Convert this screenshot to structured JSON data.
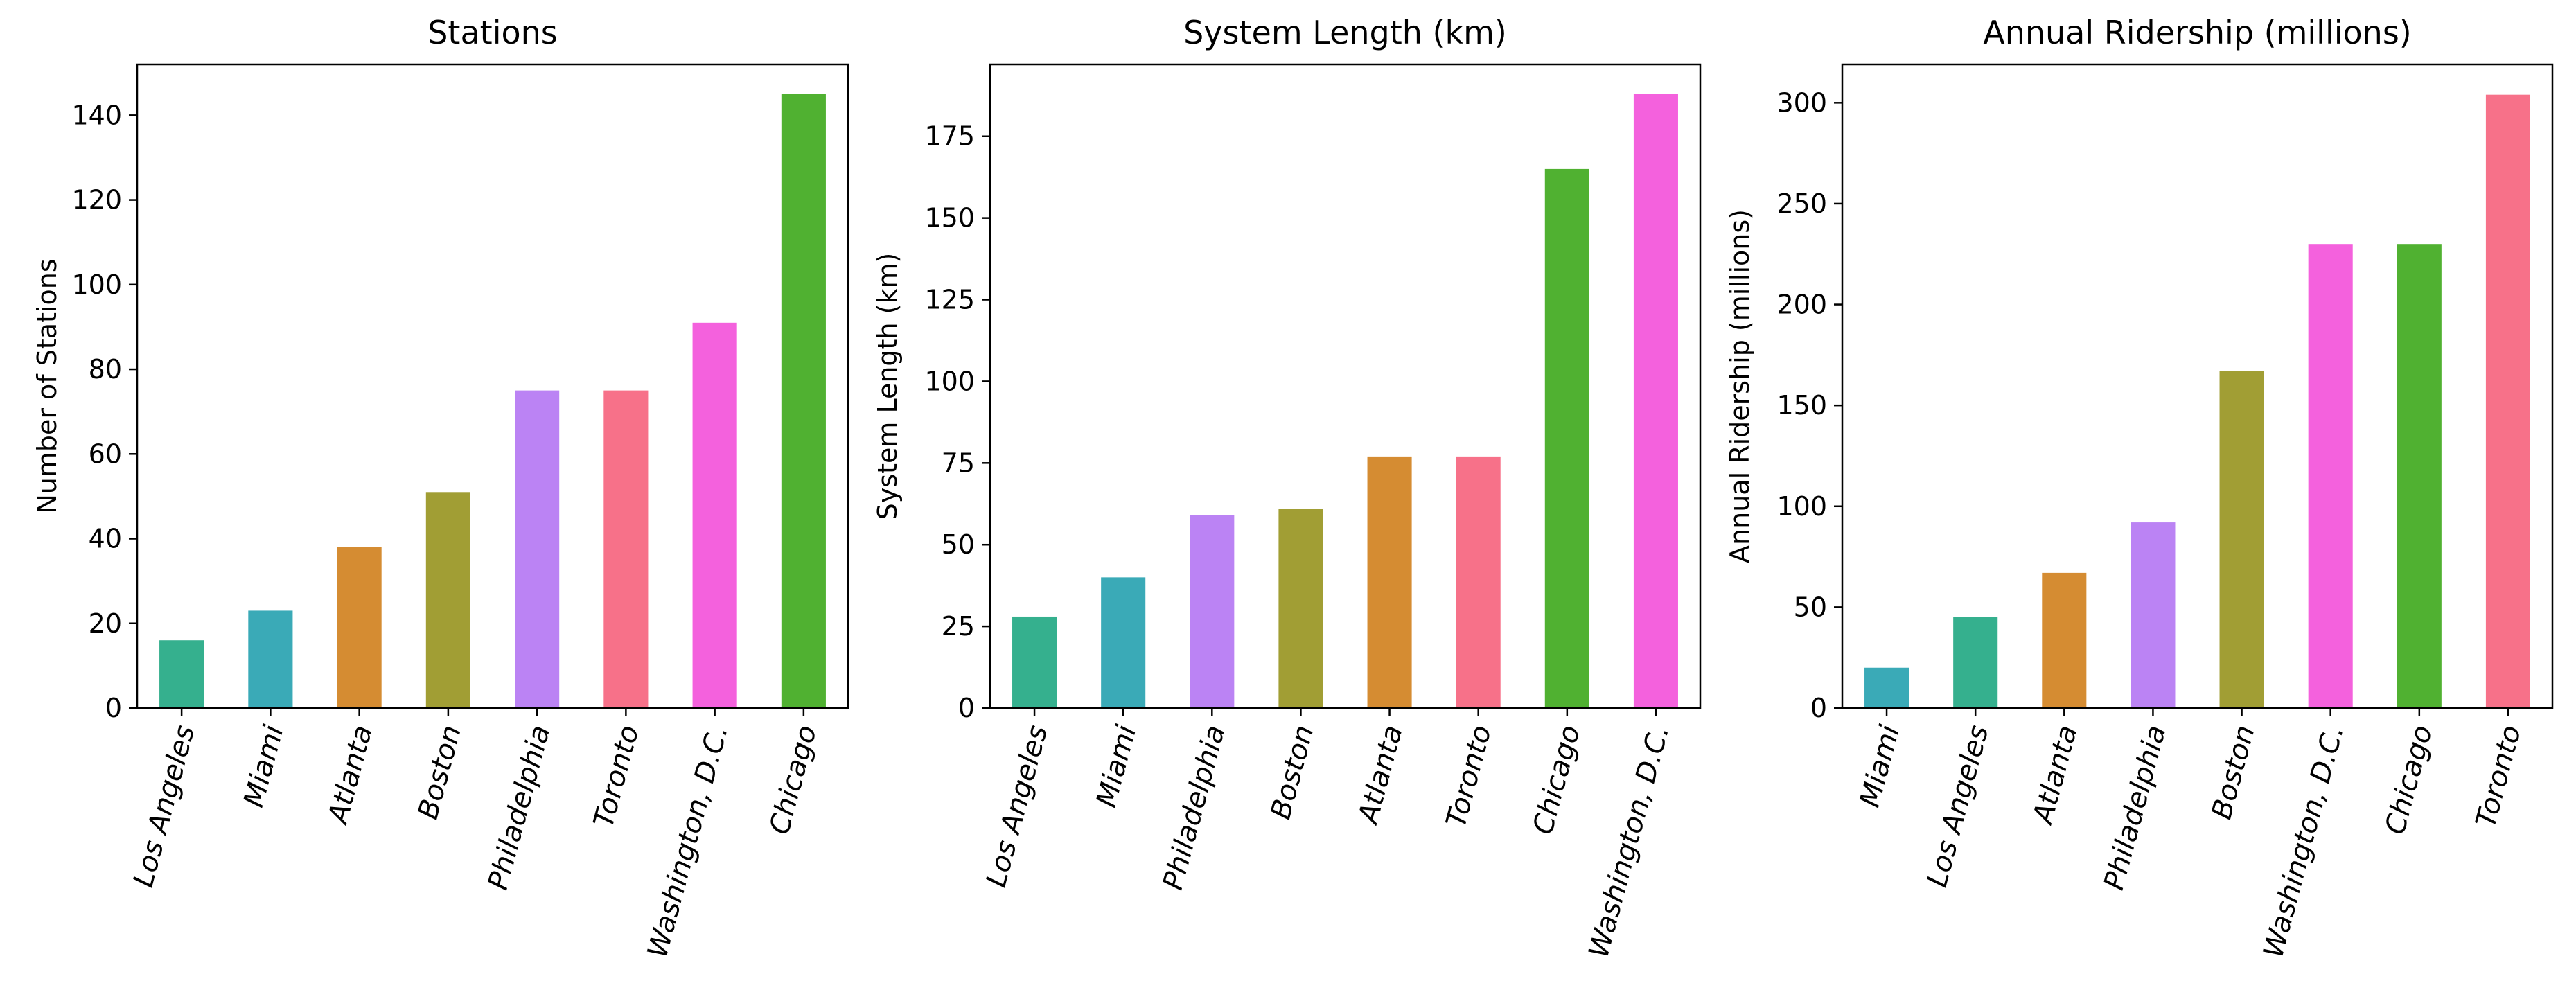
{
  "chart_data": [
    {
      "type": "bar",
      "title": "Stations",
      "xlabel": "",
      "ylabel": "Number of Stations",
      "ylim": [
        0,
        152
      ],
      "yticks": [
        0,
        20,
        40,
        60,
        80,
        100,
        120,
        140
      ],
      "grid": false,
      "categories": [
        "Los Angeles",
        "Miami",
        "Atlanta",
        "Boston",
        "Philadelphia",
        "Toronto",
        "Washington, D.C.",
        "Chicago"
      ],
      "values": [
        16,
        23,
        38,
        51,
        75,
        75,
        91,
        145
      ]
    },
    {
      "type": "bar",
      "title": "System Length (km)",
      "xlabel": "",
      "ylabel": "System Length (km)",
      "ylim": [
        0,
        197
      ],
      "yticks": [
        0,
        25,
        50,
        75,
        100,
        125,
        150,
        175
      ],
      "grid": false,
      "categories": [
        "Los Angeles",
        "Miami",
        "Philadelphia",
        "Boston",
        "Atlanta",
        "Toronto",
        "Chicago",
        "Washington, D.C."
      ],
      "values": [
        28,
        40,
        59,
        61,
        77,
        77,
        165,
        188
      ]
    },
    {
      "type": "bar",
      "title": "Annual Ridership (millions)",
      "xlabel": "",
      "ylabel": "Annual Ridership (millions)",
      "ylim": [
        0,
        319
      ],
      "yticks": [
        0,
        50,
        100,
        150,
        200,
        250,
        300
      ],
      "grid": false,
      "categories": [
        "Miami",
        "Los Angeles",
        "Atlanta",
        "Philadelphia",
        "Boston",
        "Washington, D.C.",
        "Chicago",
        "Toronto"
      ],
      "values": [
        20,
        45,
        67,
        92,
        167,
        230,
        230,
        304
      ]
    }
  ],
  "city_colors": {
    "Los Angeles": "#35b08e",
    "Miami": "#3aaab7",
    "Atlanta": "#d58c32",
    "Boston": "#a19e34",
    "Philadelphia": "#bb83f4",
    "Toronto": "#f77189",
    "Washington, D.C.": "#f461dd",
    "Chicago": "#50b131"
  }
}
